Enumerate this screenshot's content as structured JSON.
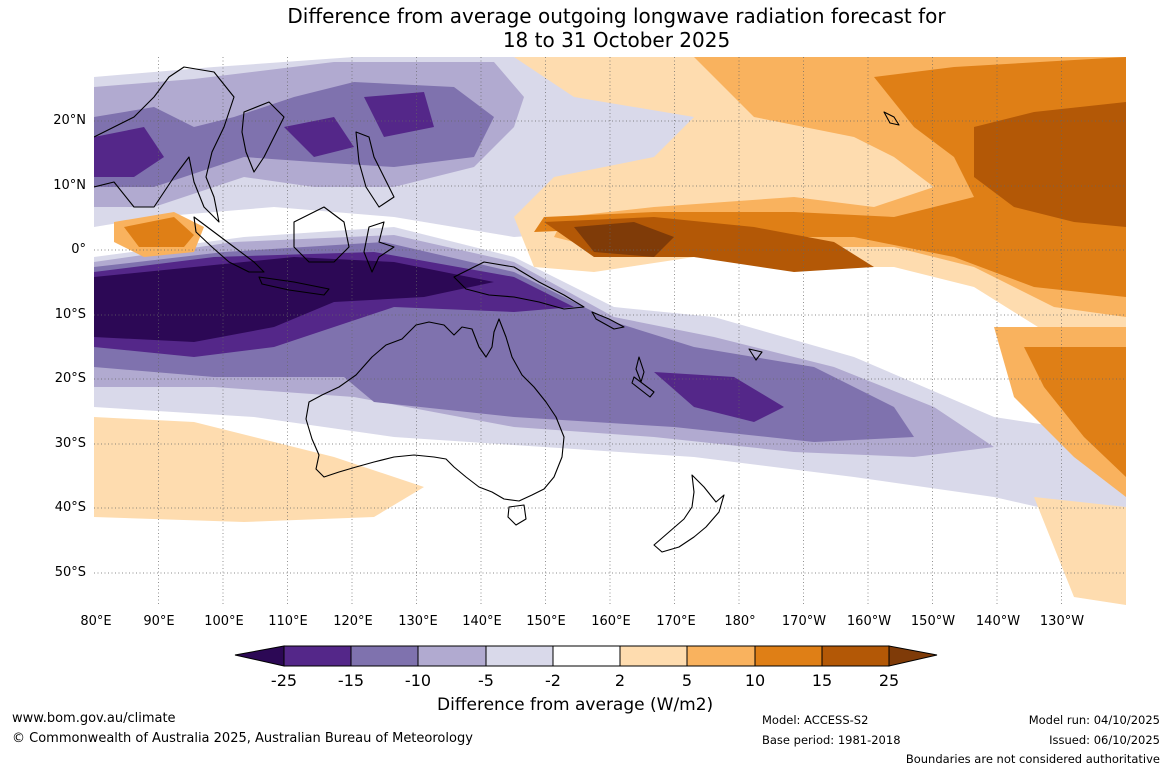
{
  "title": {
    "line1": "Difference from average outgoing longwave radiation forecast for",
    "line2": "18 to 31 October 2025"
  },
  "map": {
    "lat_labels": [
      "20°N",
      "10°N",
      "0°",
      "10°S",
      "20°S",
      "30°S",
      "40°S",
      "50°S"
    ],
    "lon_labels": [
      "80°E",
      "90°E",
      "100°E",
      "110°E",
      "120°E",
      "130°E",
      "140°E",
      "150°E",
      "160°E",
      "170°E",
      "180°",
      "170°W",
      "160°W",
      "150°W",
      "140°W",
      "130°W"
    ],
    "extent": {
      "lon_min": 80,
      "lon_max": 240,
      "lat_min": -55,
      "lat_max": 30
    }
  },
  "colorbar": {
    "tick_labels": [
      "-25",
      "-15",
      "-10",
      "-5",
      "-2",
      "2",
      "5",
      "10",
      "15",
      "25"
    ],
    "colors": [
      "#2c0855",
      "#542789",
      "#7f72ae",
      "#b1aad0",
      "#d9d9ea",
      "#ffffff",
      "#fedcaf",
      "#f9b25e",
      "#df7f16",
      "#b35806",
      "#7f3b08"
    ],
    "title": "Difference from average (W/m2)"
  },
  "footer": {
    "website": "www.bom.gov.au/climate",
    "copyright": "© Commonwealth of Australia 2025, Australian Bureau of Meteorology",
    "model": "Model: ACCESS-S2",
    "base_period": "Base period: 1981-2018",
    "model_run": "Model run: 04/10/2025",
    "issued": "Issued: 06/10/2025",
    "disclaimer": "Boundaries are not considered authoritative"
  }
}
